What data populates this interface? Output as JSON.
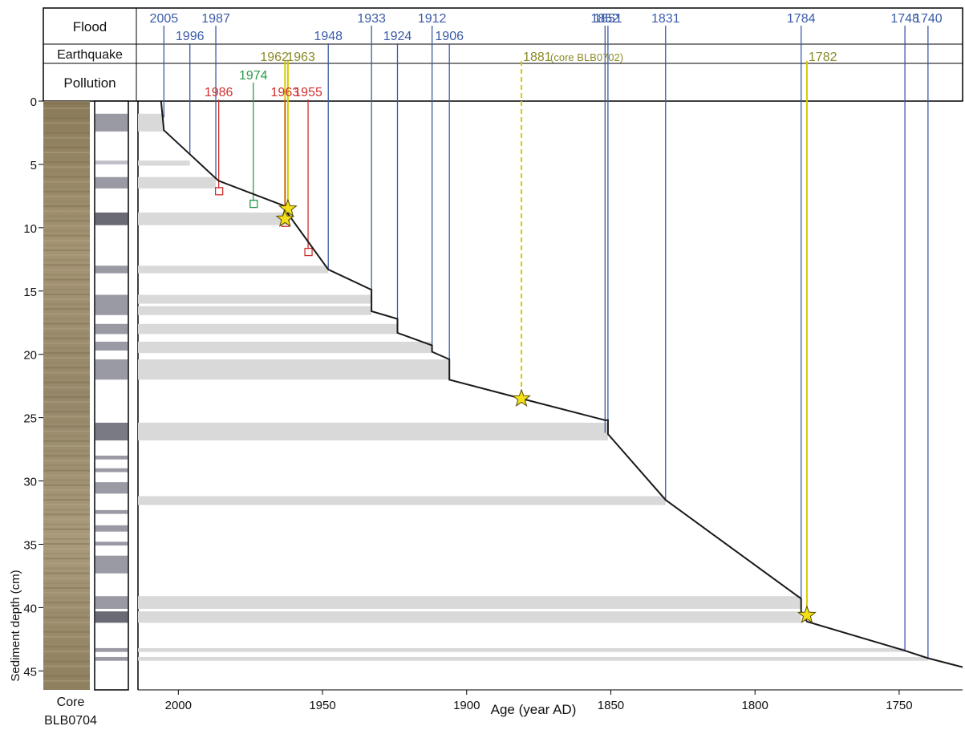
{
  "chart_data": {
    "type": "line",
    "title": "",
    "xlabel": "Age (year AD)",
    "ylabel": "Sediment depth (cm)",
    "x_reversed": true,
    "xlim": [
      2014,
      1728
    ],
    "ylim": [
      0,
      46.5
    ],
    "x_ticks": [
      2000,
      1950,
      1900,
      1850,
      1800,
      1750
    ],
    "y_ticks": [
      0,
      5,
      10,
      15,
      20,
      25,
      30,
      35,
      40,
      45
    ],
    "grid": false,
    "core_label": [
      "Core",
      "BLB0704"
    ],
    "row_labels": [
      "Flood",
      "Earthquake",
      "Pollution"
    ],
    "colors": {
      "flood": "#3a5ba8",
      "earthquake": "#8a8a2a",
      "earthquake_line": "#d9c800",
      "pollution": "#d03030",
      "pollution_1974": "#2a9a4a",
      "age_model": "#1a1a1a",
      "layer": "#d9d9d9"
    },
    "age_model": [
      {
        "year": 2006,
        "depth": 0
      },
      {
        "year": 2005,
        "depth": 2.3
      },
      {
        "year": 1996,
        "depth": 4.2
      },
      {
        "year": 1987,
        "depth": 6.1
      },
      {
        "year": 1986,
        "depth": 6.3
      },
      {
        "year": 1963,
        "depth": 8.3
      },
      {
        "year": 1962,
        "depth": 8.9
      },
      {
        "year": 1948,
        "depth": 13.3
      },
      {
        "year": 1933,
        "depth": 14.9
      },
      {
        "year": 1933,
        "depth": 16.6
      },
      {
        "year": 1924,
        "depth": 17.2
      },
      {
        "year": 1924,
        "depth": 18.3
      },
      {
        "year": 1912,
        "depth": 19.3
      },
      {
        "year": 1912,
        "depth": 19.8
      },
      {
        "year": 1906,
        "depth": 20.4
      },
      {
        "year": 1906,
        "depth": 22.0
      },
      {
        "year": 1881,
        "depth": 23.5
      },
      {
        "year": 1852,
        "depth": 25.2
      },
      {
        "year": 1851,
        "depth": 25.2
      },
      {
        "year": 1851,
        "depth": 26.3
      },
      {
        "year": 1831,
        "depth": 31.5
      },
      {
        "year": 1784,
        "depth": 39.3
      },
      {
        "year": 1784,
        "depth": 40.3
      },
      {
        "year": 1782,
        "depth": 41.1
      },
      {
        "year": 1748,
        "depth": 43.4
      },
      {
        "year": 1740,
        "depth": 44.0
      },
      {
        "year": 1728,
        "depth": 44.7
      }
    ],
    "flood_events": [
      {
        "year": 2005,
        "label": "2005",
        "depth": 1.3
      },
      {
        "year": 1996,
        "label": "1996",
        "depth": 4.2
      },
      {
        "year": 1987,
        "label": "1987",
        "depth": 6.1
      },
      {
        "year": 1948,
        "label": "1948",
        "depth": 13.3
      },
      {
        "year": 1933,
        "label": "1933",
        "depth": 16.6
      },
      {
        "year": 1924,
        "label": "1924",
        "depth": 18.3
      },
      {
        "year": 1912,
        "label": "1912",
        "depth": 19.8
      },
      {
        "year": 1906,
        "label": "1906",
        "depth": 22.0
      },
      {
        "year": 1852,
        "label": "1852",
        "depth": 26.2
      },
      {
        "year": 1851,
        "label": "1851",
        "depth": 26.2
      },
      {
        "year": 1831,
        "label": "1831",
        "depth": 31.5
      },
      {
        "year": 1784,
        "label": "1784",
        "depth": 40.3
      },
      {
        "year": 1748,
        "label": "1748",
        "depth": 43.4
      },
      {
        "year": 1740,
        "label": "1740",
        "depth": 44.0
      }
    ],
    "earthquake_events": [
      {
        "year": 1962,
        "label": "1962",
        "depth": 8.5,
        "dashed": false
      },
      {
        "year": 1963,
        "label": "1963",
        "depth": 9.3,
        "dashed": false
      },
      {
        "year": 1881,
        "label": "1881",
        "note": "(core BLB0702)",
        "depth": 23.5,
        "dashed": true
      },
      {
        "year": 1782,
        "label": "1782",
        "depth": 40.6,
        "dashed": false
      }
    ],
    "pollution_events": [
      {
        "year": 1986,
        "label": "1986",
        "depth": 7.4,
        "color": "pollution"
      },
      {
        "year": 1974,
        "label": "1974",
        "depth": 8.4,
        "color": "pollution_1974"
      },
      {
        "year": 1963,
        "label": "1963",
        "depth": 9.9,
        "color": "pollution"
      },
      {
        "year": 1955,
        "label": "1955",
        "depth": 12.2,
        "color": "pollution"
      }
    ],
    "event_layers": [
      {
        "top": 1.0,
        "bottom": 2.4,
        "year": 2005
      },
      {
        "top": 4.7,
        "bottom": 5.1,
        "year": 1996
      },
      {
        "top": 6.0,
        "bottom": 6.9,
        "year": 1987
      },
      {
        "top": 8.8,
        "bottom": 9.8,
        "year": 1962
      },
      {
        "top": 13.0,
        "bottom": 13.6,
        "year": 1948
      },
      {
        "top": 15.3,
        "bottom": 16.0,
        "year": 1933
      },
      {
        "top": 16.2,
        "bottom": 16.9,
        "year": 1933
      },
      {
        "top": 17.6,
        "bottom": 18.4,
        "year": 1924
      },
      {
        "top": 19.0,
        "bottom": 19.9,
        "year": 1912
      },
      {
        "top": 20.4,
        "bottom": 22.0,
        "year": 1906
      },
      {
        "top": 25.4,
        "bottom": 26.8,
        "year": 1851
      },
      {
        "top": 31.2,
        "bottom": 31.9,
        "year": 1831
      },
      {
        "top": 39.1,
        "bottom": 40.1,
        "year": 1784
      },
      {
        "top": 40.3,
        "bottom": 41.2,
        "year": 1784
      },
      {
        "top": 43.2,
        "bottom": 43.5,
        "year": 1748
      },
      {
        "top": 43.9,
        "bottom": 44.2,
        "year": 1740
      }
    ],
    "log_layers": [
      {
        "top": 1.0,
        "bottom": 2.4,
        "shade": "#9a9aa4"
      },
      {
        "top": 4.7,
        "bottom": 5.0,
        "shade": "#c0c0c8"
      },
      {
        "top": 6.0,
        "bottom": 6.9,
        "shade": "#9a9aa4"
      },
      {
        "top": 8.8,
        "bottom": 9.8,
        "shade": "#6a6a74"
      },
      {
        "top": 13.0,
        "bottom": 13.6,
        "shade": "#9a9aa4"
      },
      {
        "top": 15.3,
        "bottom": 16.9,
        "shade": "#9a9aa4"
      },
      {
        "top": 17.6,
        "bottom": 18.4,
        "shade": "#9a9aa4"
      },
      {
        "top": 19.0,
        "bottom": 19.7,
        "shade": "#9a9aa4"
      },
      {
        "top": 20.4,
        "bottom": 22.0,
        "shade": "#9a9aa4"
      },
      {
        "top": 25.4,
        "bottom": 26.8,
        "shade": "#7a7a84"
      },
      {
        "top": 28.0,
        "bottom": 28.3,
        "shade": "#9a9aa4"
      },
      {
        "top": 29.0,
        "bottom": 29.3,
        "shade": "#9a9aa4"
      },
      {
        "top": 30.1,
        "bottom": 31.0,
        "shade": "#9a9aa4"
      },
      {
        "top": 32.3,
        "bottom": 32.6,
        "shade": "#9a9aa4"
      },
      {
        "top": 33.5,
        "bottom": 34.0,
        "shade": "#9a9aa4"
      },
      {
        "top": 34.8,
        "bottom": 35.1,
        "shade": "#9a9aa4"
      },
      {
        "top": 35.9,
        "bottom": 37.3,
        "shade": "#9a9aa4"
      },
      {
        "top": 39.1,
        "bottom": 40.1,
        "shade": "#9a9aa4"
      },
      {
        "top": 40.3,
        "bottom": 41.2,
        "shade": "#6a6a74"
      },
      {
        "top": 43.2,
        "bottom": 43.5,
        "shade": "#9a9aa4"
      },
      {
        "top": 43.9,
        "bottom": 44.2,
        "shade": "#9a9aa4"
      }
    ]
  }
}
